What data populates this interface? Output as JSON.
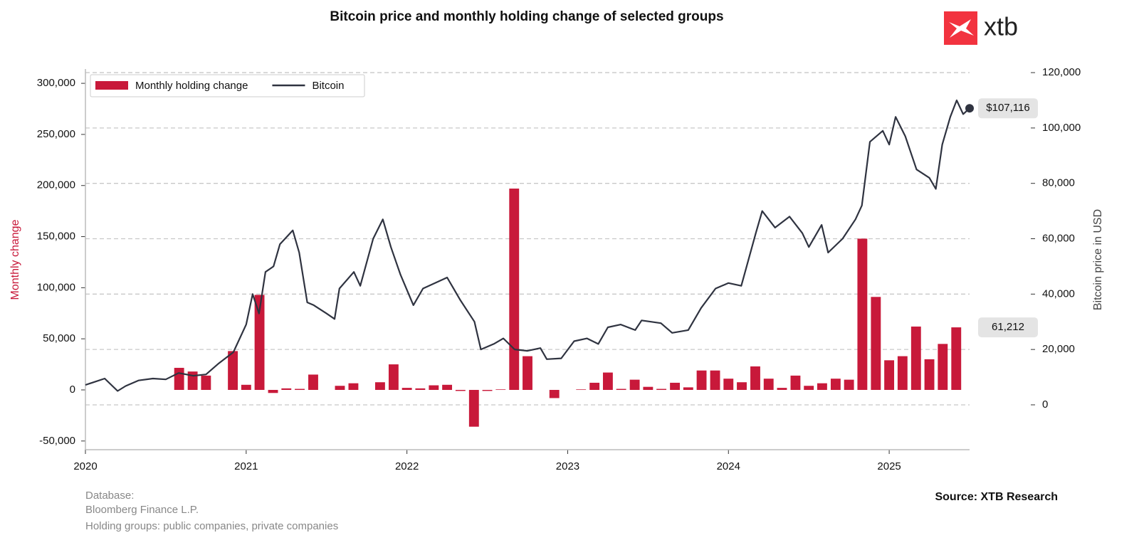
{
  "chart_data": {
    "type": "combo",
    "title": "Bitcoin price and monthly holding change of selected groups",
    "logo": "xtb",
    "ylabel": "Monthly change",
    "y2label": "Bitcoin price in USD",
    "xlim": [
      2020,
      2025.5
    ],
    "xticks": [
      2020,
      2021,
      2022,
      2023,
      2024,
      2025
    ],
    "ylim": [
      -58500,
      314000
    ],
    "yticks": [
      {
        "value": -50000,
        "label": "-50,000"
      },
      0,
      {
        "value": 50000,
        "label": "50,000"
      },
      {
        "value": 100000,
        "label": "100,000"
      },
      {
        "value": 150000,
        "label": "150,000"
      },
      {
        "value": 200000,
        "label": "200,000"
      },
      {
        "value": 250000,
        "label": "250,000"
      },
      {
        "value": 300000,
        "label": "300,000"
      }
    ],
    "y2lim": [
      -16200,
      121300
    ],
    "y2ticks": [
      0,
      {
        "value": 20000,
        "label": "20,000"
      },
      {
        "value": 40000,
        "label": "40,000"
      },
      {
        "value": 60000,
        "label": "60,000"
      },
      {
        "value": 80000,
        "label": "80,000"
      },
      {
        "value": 100000,
        "label": "100,000"
      },
      {
        "value": 120000,
        "label": "120,000"
      }
    ],
    "grid": true,
    "legend": "upper left",
    "series": [
      {
        "name": "Monthly holding change",
        "type": "bar",
        "color": "#c8193a",
        "x": [
          2020,
          2020.083,
          2020.167,
          2020.25,
          2020.333,
          2020.417,
          2020.5,
          2020.583,
          2020.667,
          2020.75,
          2020.833,
          2020.917,
          2021,
          2021.083,
          2021.167,
          2021.25,
          2021.333,
          2021.417,
          2021.5,
          2021.583,
          2021.667,
          2021.75,
          2021.833,
          2021.917,
          2022,
          2022.083,
          2022.167,
          2022.25,
          2022.333,
          2022.417,
          2022.5,
          2022.583,
          2022.667,
          2022.75,
          2022.833,
          2022.917,
          2023,
          2023.083,
          2023.167,
          2023.25,
          2023.333,
          2023.417,
          2023.5,
          2023.583,
          2023.667,
          2023.75,
          2023.833,
          2023.917,
          2024,
          2024.083,
          2024.167,
          2024.25,
          2024.333,
          2024.417,
          2024.5,
          2024.583,
          2024.667,
          2024.75,
          2024.833,
          2024.917,
          2025,
          2025.083,
          2025.167,
          2025.25,
          2025.333,
          2025.417
        ],
        "values": [
          0,
          0,
          0,
          0,
          0,
          0,
          0,
          21600,
          18000,
          14000,
          0,
          38000,
          5000,
          93000,
          -3000,
          1500,
          1000,
          15000,
          0,
          4000,
          6500,
          0,
          7500,
          25000,
          2000,
          1500,
          4500,
          5000,
          -1000,
          -36000,
          -1000,
          500,
          197000,
          33000,
          0,
          -8000,
          0,
          500,
          7000,
          17000,
          1000,
          10000,
          3000,
          1000,
          7000,
          2500,
          19000,
          19000,
          11000,
          7500,
          23000,
          11000,
          2000,
          14000,
          4000,
          6500,
          11000,
          10000,
          148000,
          91000,
          29000,
          33000,
          62000,
          30000,
          45000,
          61212
        ]
      },
      {
        "name": "Bitcoin",
        "type": "line",
        "axis": "y2",
        "color": "#2f3340",
        "x": [
          2020,
          2020.12,
          2020.2,
          2020.25,
          2020.33,
          2020.42,
          2020.5,
          2020.58,
          2020.67,
          2020.75,
          2020.83,
          2020.92,
          2021,
          2021.04,
          2021.08,
          2021.12,
          2021.17,
          2021.21,
          2021.29,
          2021.33,
          2021.38,
          2021.42,
          2021.5,
          2021.55,
          2021.58,
          2021.67,
          2021.71,
          2021.79,
          2021.85,
          2021.9,
          2021.96,
          2022.04,
          2022.1,
          2022.25,
          2022.33,
          2022.42,
          2022.46,
          2022.54,
          2022.6,
          2022.67,
          2022.75,
          2022.83,
          2022.87,
          2022.96,
          2023.04,
          2023.12,
          2023.19,
          2023.25,
          2023.33,
          2023.42,
          2023.46,
          2023.58,
          2023.65,
          2023.75,
          2023.83,
          2023.92,
          2024,
          2024.08,
          2024.17,
          2024.21,
          2024.29,
          2024.38,
          2024.46,
          2024.5,
          2024.58,
          2024.62,
          2024.71,
          2024.79,
          2024.83,
          2024.88,
          2024.96,
          2025,
          2025.04,
          2025.1,
          2025.17,
          2025.25,
          2025.29,
          2025.33,
          2025.38,
          2025.42,
          2025.46,
          2025.5
        ],
        "values": [
          7200,
          9500,
          5000,
          6800,
          8800,
          9500,
          9200,
          11500,
          10500,
          11000,
          15000,
          19000,
          29000,
          40000,
          33000,
          48000,
          50000,
          58000,
          63000,
          55000,
          37000,
          36000,
          33000,
          31000,
          42000,
          48000,
          43000,
          60000,
          67000,
          57000,
          47000,
          36000,
          42000,
          46000,
          38000,
          30000,
          20000,
          22000,
          24000,
          20000,
          19500,
          20500,
          16500,
          16800,
          23000,
          24000,
          22000,
          28000,
          29000,
          27000,
          30500,
          29500,
          26000,
          27000,
          35000,
          42000,
          44000,
          43000,
          62000,
          70000,
          64000,
          68000,
          62000,
          57000,
          65000,
          55000,
          60000,
          67000,
          72000,
          95000,
          99000,
          94000,
          104000,
          97000,
          85000,
          82000,
          78000,
          94000,
          104000,
          110000,
          105000,
          107116
        ]
      }
    ],
    "annotations": [
      {
        "label": "$107,116",
        "value": 107116,
        "axis": "y2"
      },
      {
        "label": "61,212",
        "value": 61212,
        "axis": "y"
      }
    ],
    "notes": [
      "Database:",
      "Bloomberg Finance L.P.",
      "Holding groups: public companies, private companies"
    ],
    "source": "Source: XTB Research"
  }
}
